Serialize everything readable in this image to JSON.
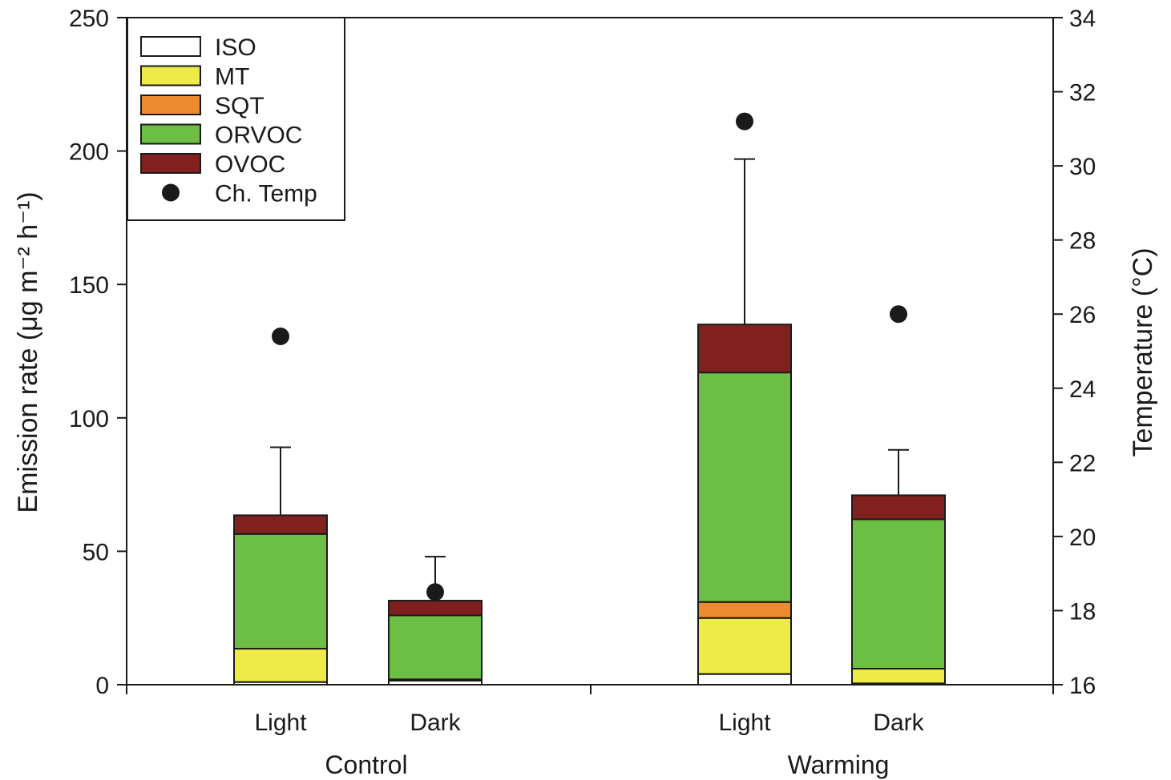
{
  "chart_data": {
    "type": "bar",
    "stacked": true,
    "groups": [
      {
        "label": "Control",
        "categories": [
          0,
          1
        ]
      },
      {
        "label": "Warming",
        "categories": [
          2,
          3
        ]
      }
    ],
    "categories": [
      "Light",
      "Dark",
      "Light",
      "Dark"
    ],
    "series": [
      {
        "name": "ISO",
        "color": "#ffffff",
        "values": [
          1,
          1.5,
          4,
          0.5
        ]
      },
      {
        "name": "MT",
        "color": "#eeea46",
        "values": [
          12.5,
          0.5,
          21,
          5.5
        ]
      },
      {
        "name": "SQT",
        "color": "#ec8a30",
        "values": [
          0,
          0,
          6,
          0
        ]
      },
      {
        "name": "ORVOC",
        "color": "#6cbe45",
        "values": [
          43,
          24,
          86,
          56
        ]
      },
      {
        "name": "OVOC",
        "color": "#80201f",
        "values": [
          7,
          5.5,
          18,
          9
        ]
      }
    ],
    "error_top": [
      89,
      48,
      197,
      88
    ],
    "temperature": {
      "name": "Ch. Temp",
      "color": "#1a1a1a",
      "values": [
        25.4,
        18.5,
        31.2,
        26.0
      ]
    },
    "ylabel": "Emission rate (μg m⁻² h⁻¹)",
    "y2label": "Temperature (°C)",
    "ylim": [
      0,
      250
    ],
    "yticks": [
      0,
      50,
      100,
      150,
      200,
      250
    ],
    "y2lim": [
      16,
      34
    ],
    "y2ticks": [
      16,
      18,
      20,
      22,
      24,
      26,
      28,
      30,
      32,
      34
    ],
    "legend_position": "top-left",
    "grid": false
  }
}
